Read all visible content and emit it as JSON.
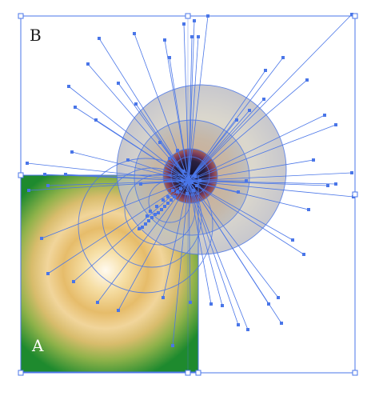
{
  "labels": {
    "artboard_b": "B",
    "artboard_a": "A"
  },
  "colors": {
    "selection": "#4a76e8",
    "green_panel": "#1e8a2e",
    "gold_light": "#fff6d8",
    "gold_mid": "#e8c270",
    "gold_dark": "#a08038",
    "eye_outer": "#c8c8c8",
    "eye_iris": "#b07050",
    "eye_pupil": "#1a1a3a",
    "label_dark": "#1a1a1a",
    "label_light": "#ffffff"
  },
  "tool_state": {
    "mode": "gradient-mesh-selected",
    "handle_icon": "anchor-point-icon"
  }
}
